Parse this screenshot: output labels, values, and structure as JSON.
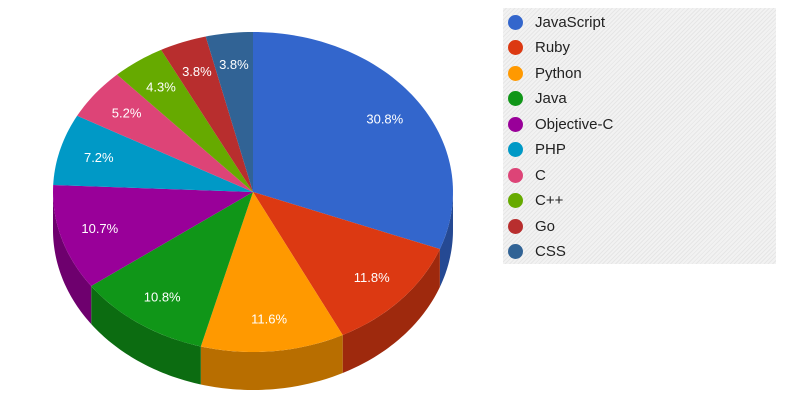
{
  "chart_data": {
    "type": "pie",
    "style": "3d",
    "categories": [
      "JavaScript",
      "Ruby",
      "Python",
      "Java",
      "Objective-C",
      "PHP",
      "C",
      "C++",
      "Go",
      "CSS"
    ],
    "values": [
      30.8,
      11.8,
      11.6,
      10.8,
      10.7,
      7.2,
      5.2,
      4.3,
      3.8,
      3.8
    ],
    "labels": [
      "30.8%",
      "11.8%",
      "11.6%",
      "10.8%",
      "10.7%",
      "7.2%",
      "5.2%",
      "4.3%",
      "3.8%",
      "3.8%"
    ],
    "colors": [
      "#3366cc",
      "#dc3912",
      "#ff9900",
      "#109618",
      "#990099",
      "#0099c6",
      "#dd4477",
      "#66aa00",
      "#b82e2e",
      "#316395"
    ],
    "legend_position": "right"
  }
}
